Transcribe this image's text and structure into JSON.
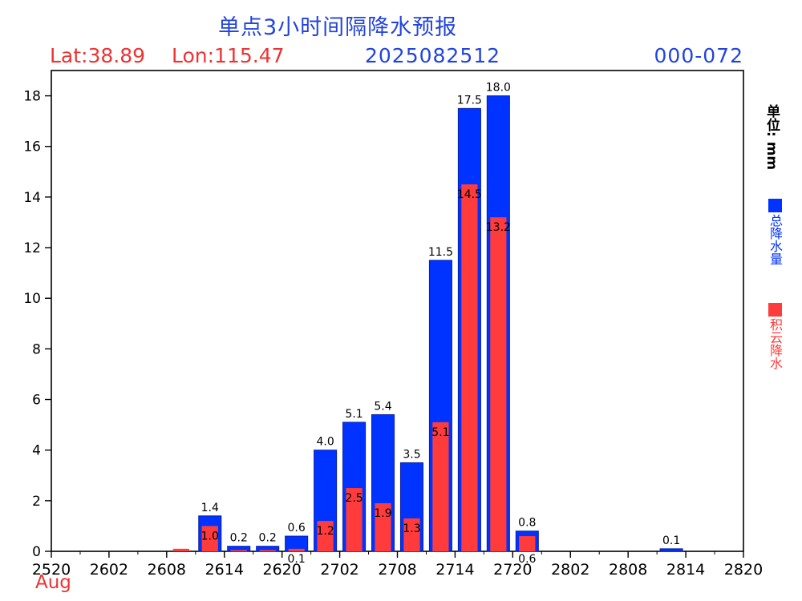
{
  "header": {
    "title": "单点3小时间隔降水预报",
    "lat": "Lat:38.89",
    "lon": "Lon:115.47",
    "date": "2025082512",
    "range": "000-072"
  },
  "side": {
    "unit": "单位: mm"
  },
  "legend": {
    "total_label": "总降水量",
    "total_color": "#0033ff",
    "conv_label": "积云降水",
    "conv_color": "#ff3b3b"
  },
  "month_label": "Aug",
  "chart_data": {
    "type": "bar",
    "x_tick_labels": [
      "2520",
      "2602",
      "2608",
      "2614",
      "2620",
      "2702",
      "2708",
      "2714",
      "2720",
      "2802",
      "2808",
      "2814",
      "2820"
    ],
    "x": [
      "2600",
      "2603",
      "2606",
      "2609",
      "2612",
      "2615",
      "2618",
      "2621",
      "2700",
      "2703",
      "2706",
      "2709",
      "2712",
      "2715",
      "2718",
      "2721",
      "2800",
      "2803",
      "2806",
      "2809",
      "2812",
      "2815",
      "2818",
      "2821"
    ],
    "series": [
      {
        "name": "总降水量",
        "color": "#0033ff",
        "values": [
          0,
          0,
          0,
          0,
          0,
          1.4,
          0.2,
          0.2,
          0.6,
          4.0,
          5.1,
          5.4,
          3.5,
          11.5,
          17.5,
          18.0,
          0.8,
          0,
          0,
          0,
          0,
          0.1,
          0,
          0
        ],
        "labels": [
          "",
          "",
          "",
          "",
          "",
          "1.4",
          "0.2",
          "0.2",
          "0.6",
          "4.0",
          "5.1",
          "5.4",
          "3.5",
          "11.5",
          "17.5",
          "18.0",
          "0.8",
          "",
          "",
          "",
          "",
          "0.1",
          "",
          ""
        ]
      },
      {
        "name": "积云降水",
        "color": "#ff3b3b",
        "values": [
          0,
          0,
          0,
          0,
          0.1,
          1.0,
          0.05,
          0.05,
          0.1,
          1.2,
          2.5,
          1.9,
          1.3,
          5.1,
          14.5,
          13.2,
          0.6,
          0,
          0,
          0,
          0,
          0,
          0,
          0
        ],
        "labels": [
          "",
          "",
          "",
          "",
          "",
          "1.0",
          "",
          "",
          "0.1",
          "1.2",
          "2.5",
          "1.9",
          "1.3",
          "5.1",
          "14.5",
          "13.2",
          "0.6",
          "",
          "",
          "",
          "",
          "",
          "",
          ""
        ]
      }
    ],
    "ylim": [
      0,
      19
    ],
    "y_ticks": [
      0,
      2,
      4,
      6,
      8,
      10,
      12,
      14,
      16,
      18
    ]
  }
}
